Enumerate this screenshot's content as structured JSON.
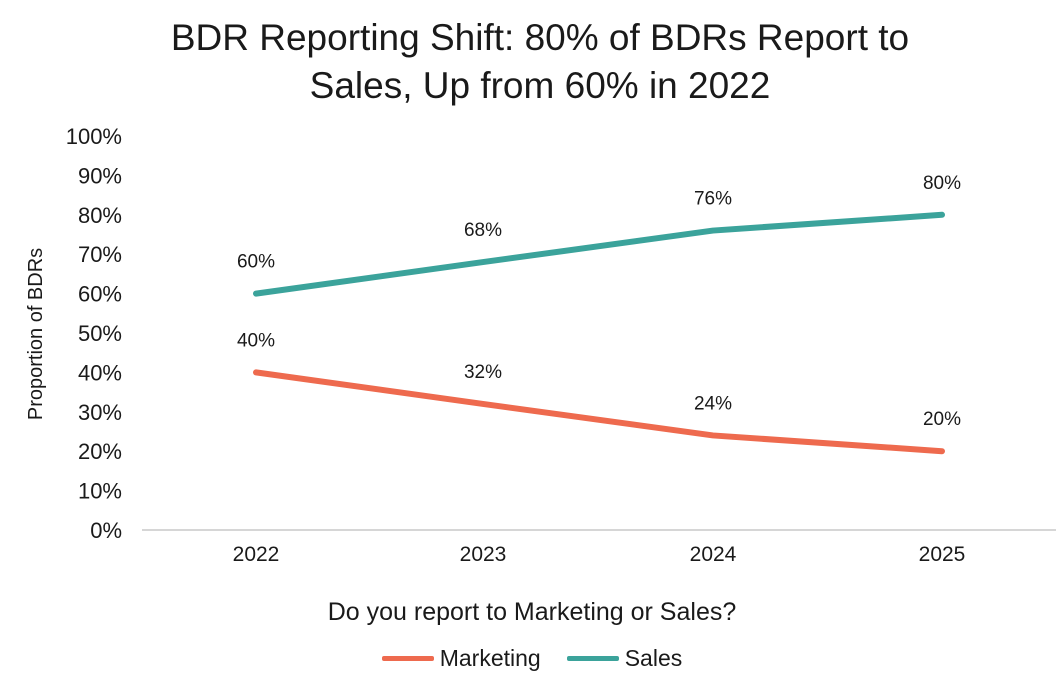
{
  "chart_data": {
    "type": "line",
    "title_line1": "BDR Reporting Shift: 80% of BDRs Report to",
    "title_line2": "Sales, Up from 60% in 2022",
    "xlabel": "Do you report to Marketing or Sales?",
    "ylabel": "Proportion of BDRs",
    "categories": [
      "2022",
      "2023",
      "2024",
      "2025"
    ],
    "ylim": [
      0,
      100
    ],
    "yticks": [
      "0%",
      "10%",
      "20%",
      "30%",
      "40%",
      "50%",
      "60%",
      "70%",
      "80%",
      "90%",
      "100%"
    ],
    "grid": false,
    "legend_position": "bottom",
    "series": [
      {
        "name": "Marketing",
        "values": [
          40,
          32,
          24,
          20
        ],
        "labels": [
          "40%",
          "32%",
          "24%",
          "20%"
        ],
        "color": "#EE6A4E"
      },
      {
        "name": "Sales",
        "values": [
          60,
          68,
          76,
          80
        ],
        "labels": [
          "60%",
          "68%",
          "76%",
          "80%"
        ],
        "color": "#3BA39B"
      }
    ]
  }
}
